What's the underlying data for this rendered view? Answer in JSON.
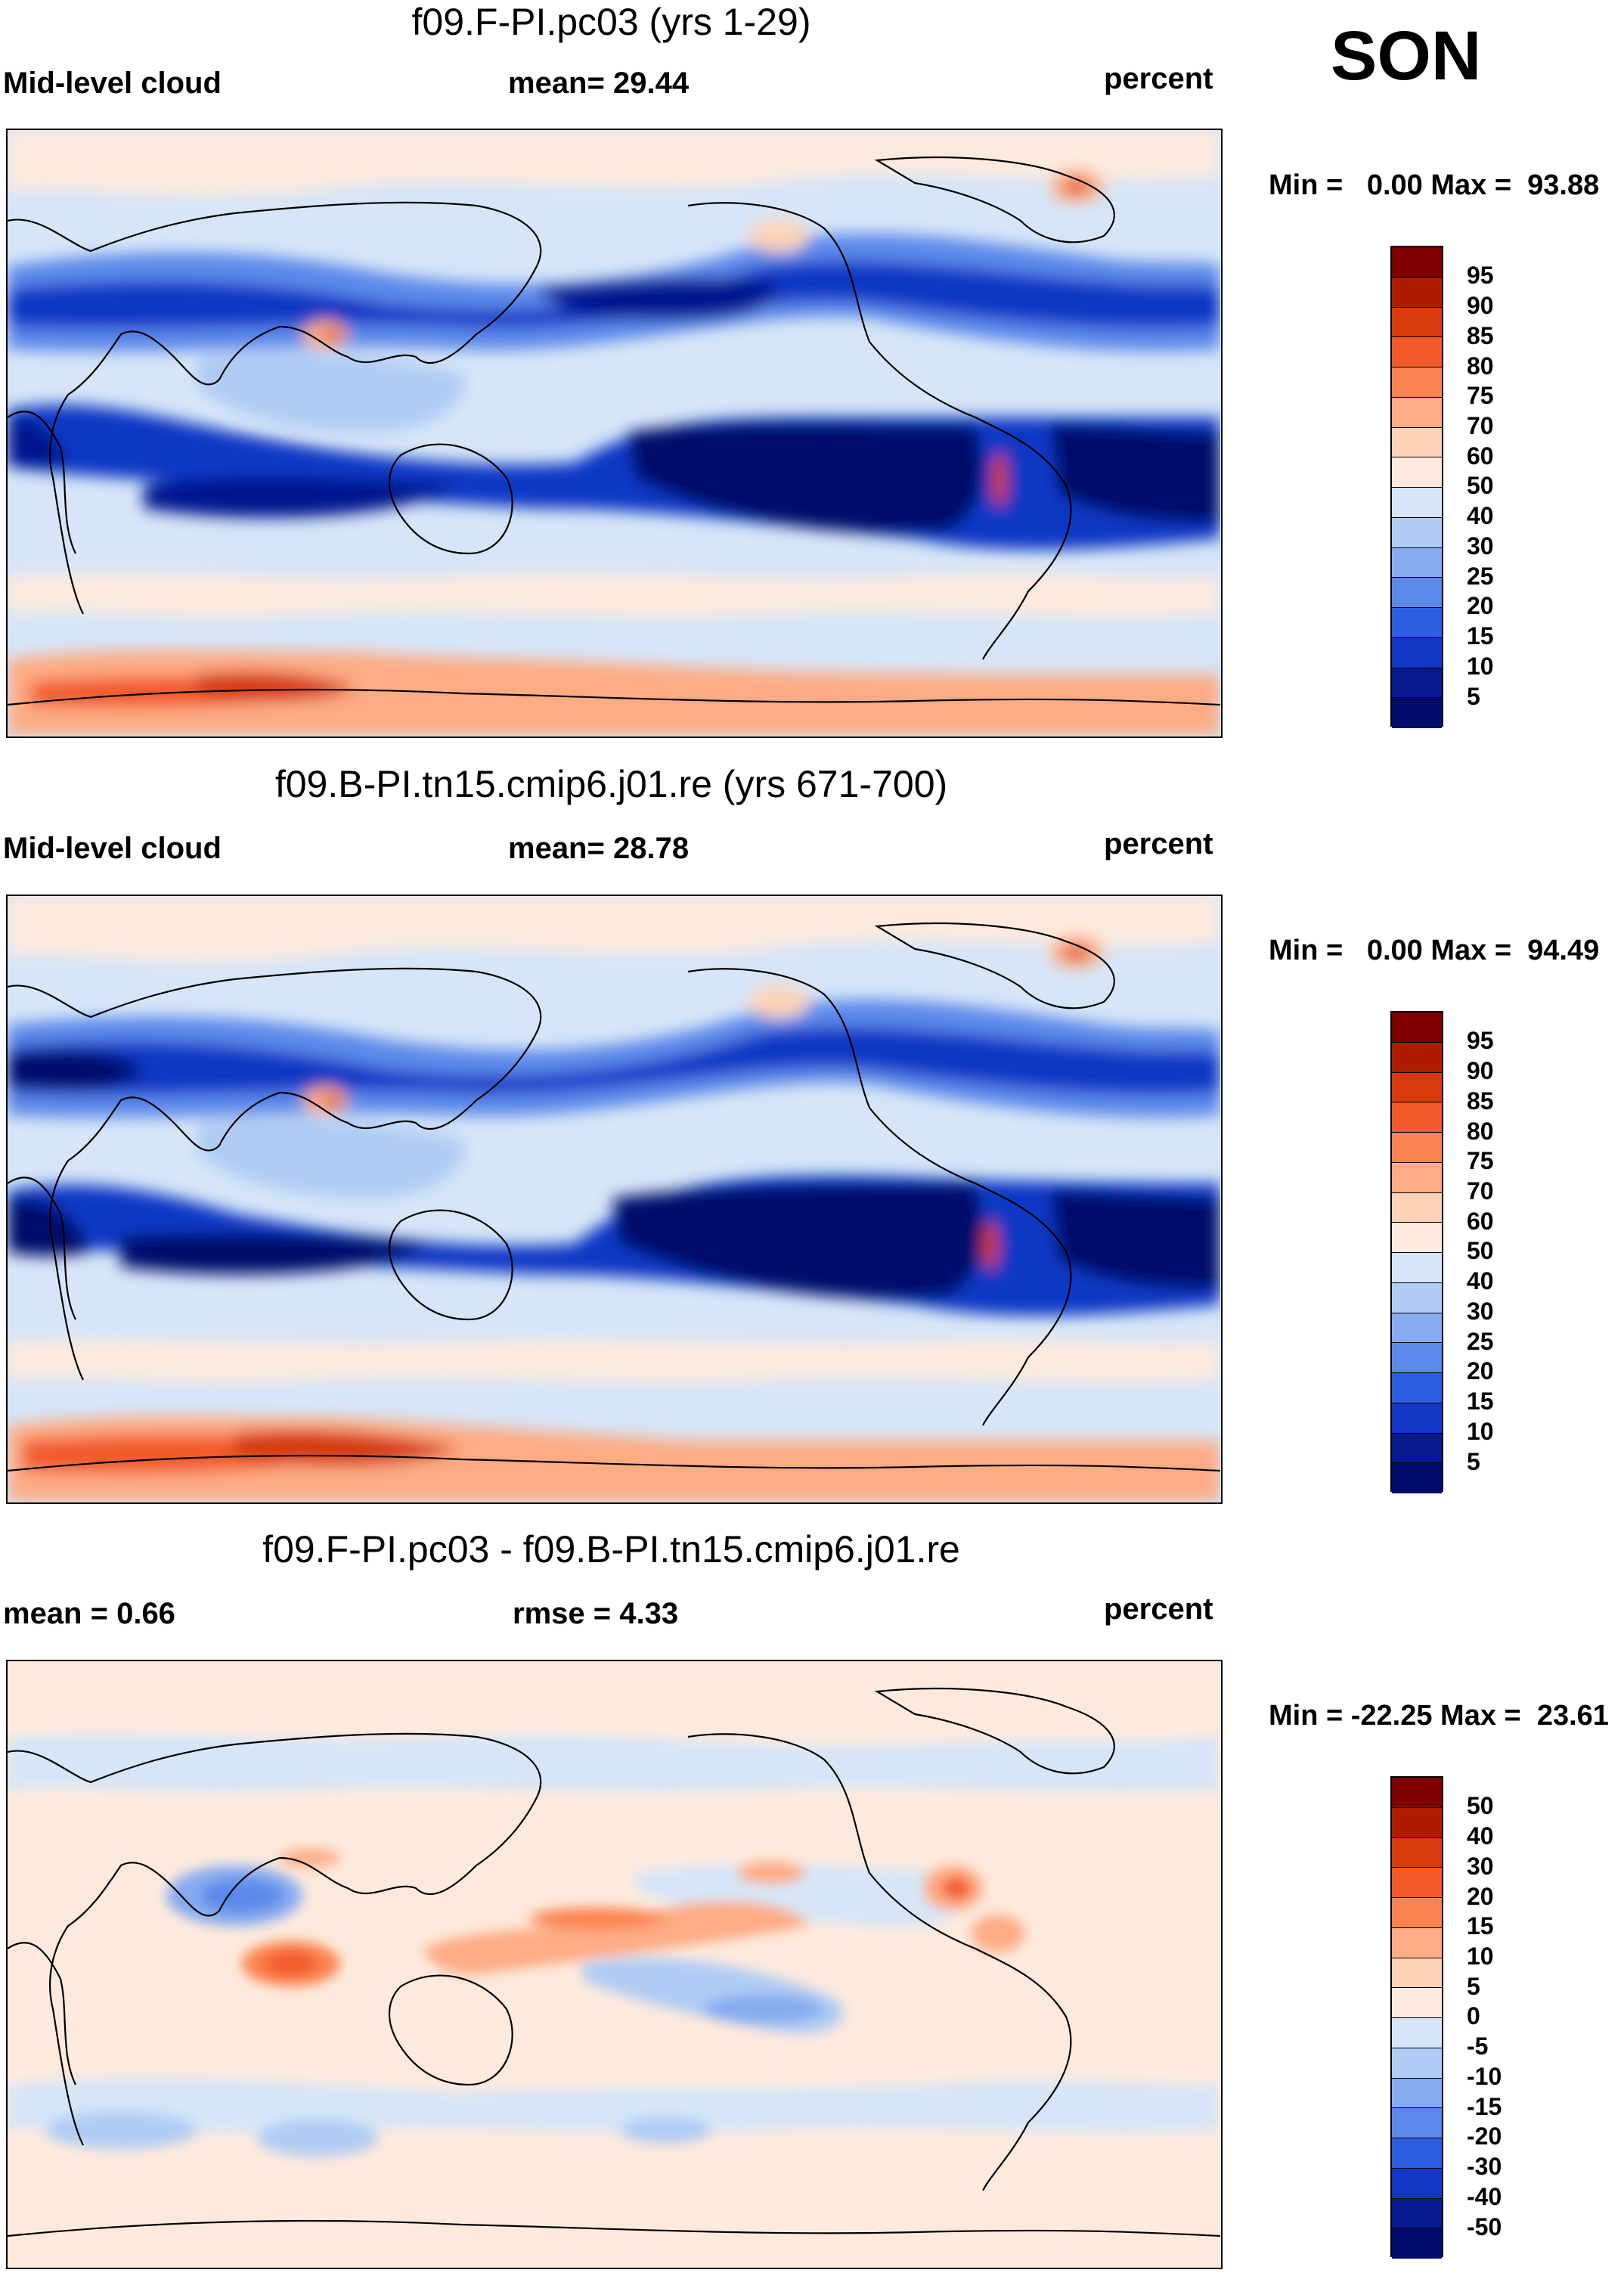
{
  "season": "SON",
  "units": "percent",
  "panels": [
    {
      "title": "f09.F-PI.pc03 (yrs 1-29)",
      "left_label": "Mid-level cloud",
      "center_label": "mean=  29.44",
      "right_label": "percent",
      "minmax": "Min =   0.00 Max =  93.88",
      "levels": [
        "95",
        "90",
        "85",
        "80",
        "75",
        "70",
        "60",
        "50",
        "40",
        "30",
        "25",
        "20",
        "15",
        "10",
        "5"
      ]
    },
    {
      "title": "f09.B-PI.tn15.cmip6.j01.re (yrs 671-700)",
      "left_label": "Mid-level cloud",
      "center_label": "mean=  28.78",
      "right_label": "percent",
      "minmax": "Min =   0.00 Max =  94.49",
      "levels": [
        "95",
        "90",
        "85",
        "80",
        "75",
        "70",
        "60",
        "50",
        "40",
        "30",
        "25",
        "20",
        "15",
        "10",
        "5"
      ]
    },
    {
      "title": "f09.F-PI.pc03 - f09.B-PI.tn15.cmip6.j01.re",
      "left_label": "mean =   0.66",
      "center_label": "rmse =   4.33",
      "right_label": "percent",
      "minmax": "Min = -22.25 Max =  23.61",
      "levels": [
        "50",
        "40",
        "30",
        "20",
        "15",
        "10",
        "5",
        "0",
        "-5",
        "-10",
        "-15",
        "-20",
        "-30",
        "-40",
        "-50"
      ]
    }
  ],
  "colorbar_colors": [
    "#7e0000",
    "#ad1c00",
    "#d63a0d",
    "#f25a2a",
    "#fb8350",
    "#fdac84",
    "#fdd3b7",
    "#fdeadd",
    "#d6e6f8",
    "#b0ccf4",
    "#86acef",
    "#5b89ea",
    "#2e5ee0",
    "#1137c4",
    "#06198f",
    "#000c6b"
  ]
}
